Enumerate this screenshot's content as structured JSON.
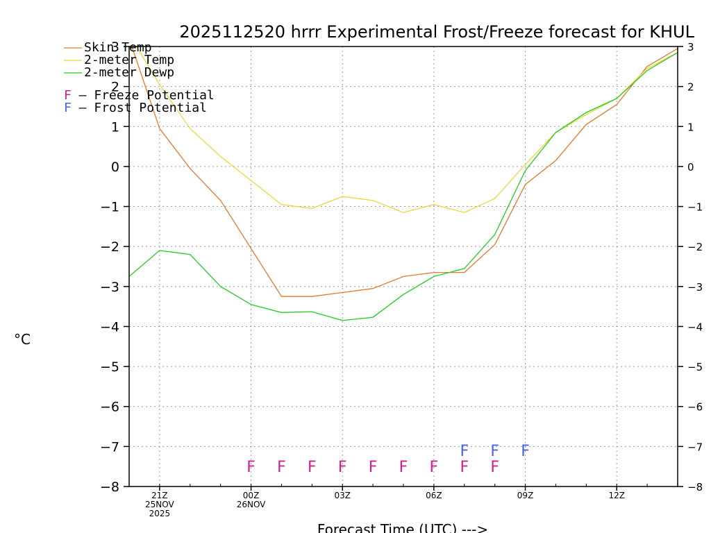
{
  "chart_data": {
    "type": "line",
    "title": "2025112520 hrrr Experimental Frost/Freeze forecast for KHUL",
    "xlabel": "Forecast Time (UTC) --->",
    "ylabel": "°C",
    "ylim": [
      -8,
      3
    ],
    "yticks": [
      -8,
      -7,
      -6,
      -5,
      -4,
      -3,
      -2,
      -1,
      0,
      1,
      2,
      3
    ],
    "grid": true,
    "x_hours": [
      0,
      1,
      2,
      3,
      4,
      5,
      6,
      7,
      8,
      9,
      10,
      11,
      12,
      13,
      14,
      15,
      16,
      17,
      18
    ],
    "x_ticks": [
      {
        "hour": 1,
        "lines": [
          "21Z",
          "25NOV",
          "2025"
        ]
      },
      {
        "hour": 4,
        "lines": [
          "00Z",
          "26NOV"
        ]
      },
      {
        "hour": 7,
        "lines": [
          "03Z"
        ]
      },
      {
        "hour": 10,
        "lines": [
          "06Z"
        ]
      },
      {
        "hour": 13,
        "lines": [
          "09Z"
        ]
      },
      {
        "hour": 16,
        "lines": [
          "12Z"
        ]
      }
    ],
    "series": [
      {
        "name": "Skin Temp",
        "color": "#e07a2e",
        "values": [
          3.2,
          0.95,
          -0.05,
          -0.85,
          -2.05,
          -3.25,
          -3.25,
          -3.15,
          -3.05,
          -2.75,
          -2.65,
          -2.65,
          -1.95,
          -0.45,
          0.15,
          1.05,
          1.55,
          2.5,
          2.95
        ]
      },
      {
        "name": "2-meter Temp",
        "color": "#e8d83c",
        "values": [
          3.3,
          2.05,
          0.95,
          0.25,
          -0.35,
          -0.95,
          -1.05,
          -0.75,
          -0.85,
          -1.15,
          -0.95,
          -1.15,
          -0.8,
          0.05,
          0.85,
          1.3,
          1.7,
          2.45,
          2.85
        ]
      },
      {
        "name": "2-meter Dewp",
        "color": "#22cc22",
        "values": [
          -2.75,
          -2.1,
          -2.2,
          -3.0,
          -3.45,
          -3.65,
          -3.63,
          -3.85,
          -3.77,
          -3.2,
          -2.75,
          -2.55,
          -1.7,
          -0.1,
          0.85,
          1.35,
          1.7,
          2.4,
          2.85
        ]
      }
    ],
    "legend_position": "top-left",
    "potential_legend": [
      {
        "symbol": "F",
        "label": " – Freeze Potential",
        "color": "#cc2288"
      },
      {
        "symbol": "F",
        "label": " – Frost Potential",
        "color": "#4466dd"
      }
    ],
    "freeze_marks": {
      "symbol": "F",
      "color": "#cc2288",
      "level": -7.5,
      "hours": [
        4,
        5,
        6,
        7,
        8,
        9,
        10,
        11,
        12
      ]
    },
    "frost_marks": {
      "symbol": "F",
      "color": "#4466dd",
      "level": -7.1,
      "hours": [
        11,
        12,
        13
      ]
    }
  }
}
